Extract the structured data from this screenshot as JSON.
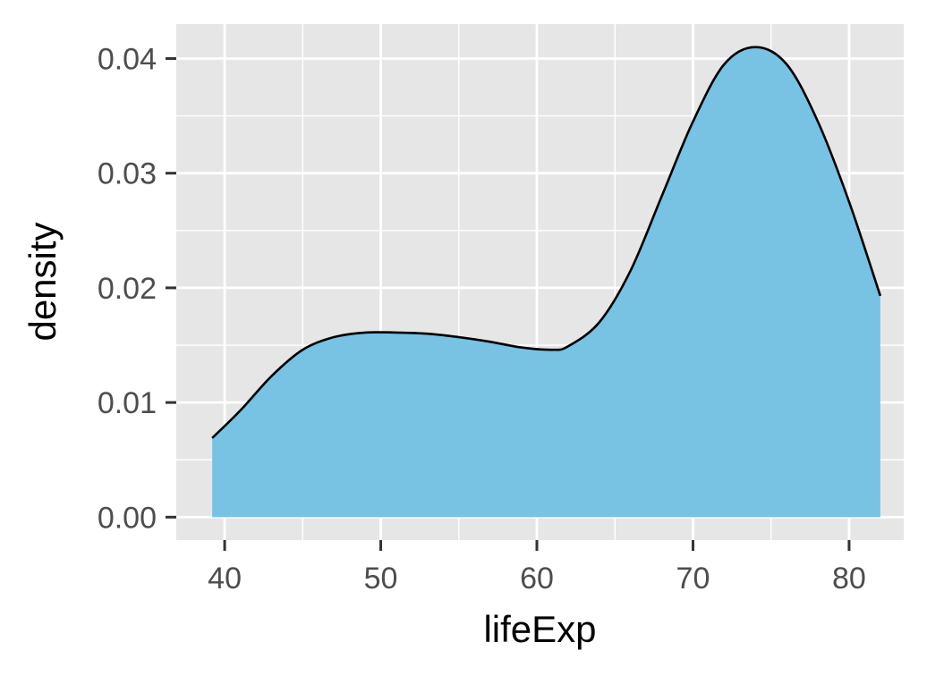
{
  "chart_data": {
    "type": "area",
    "title": "",
    "xlabel": "lifeExp",
    "ylabel": "density",
    "xlim": [
      36.9,
      83.5
    ],
    "ylim": [
      -0.002,
      0.043
    ],
    "x_ticks": [
      40,
      50,
      60,
      70,
      80
    ],
    "x_tick_labels": [
      "40",
      "50",
      "60",
      "70",
      "80"
    ],
    "y_ticks": [
      0.0,
      0.01,
      0.02,
      0.03,
      0.04
    ],
    "y_tick_labels": [
      "0.00",
      "0.01",
      "0.02",
      "0.03",
      "0.04"
    ],
    "grid": true,
    "legend": "none",
    "series": [
      {
        "x": [
          39.2,
          41,
          43,
          45,
          47,
          49,
          51,
          53,
          55,
          57,
          59,
          61,
          62,
          64,
          66,
          68,
          70,
          72,
          74,
          76,
          78,
          80,
          82.0
        ],
        "y": [
          0.0069,
          0.0093,
          0.0123,
          0.0146,
          0.0157,
          0.0161,
          0.0161,
          0.016,
          0.0157,
          0.0153,
          0.0148,
          0.0146,
          0.0149,
          0.017,
          0.0215,
          0.028,
          0.0345,
          0.0395,
          0.041,
          0.0395,
          0.0345,
          0.0275,
          0.0193
        ]
      }
    ],
    "colors": {
      "fill": "#78C2E4",
      "line": "#000000",
      "panel": "#E6E6E6",
      "grid": "#FFFFFF",
      "ticks": "#333333"
    }
  }
}
